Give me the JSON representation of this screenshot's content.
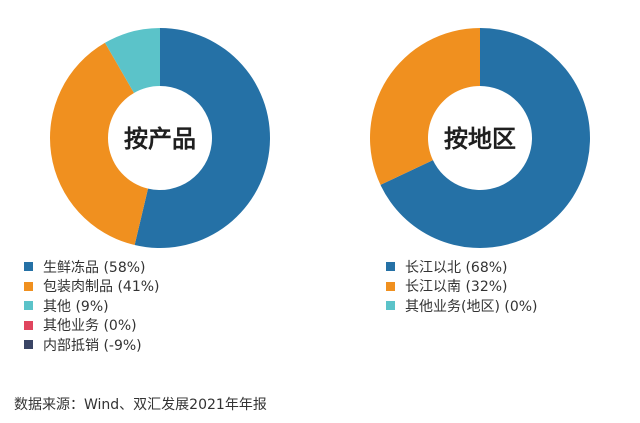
{
  "chart_data": [
    {
      "type": "pie",
      "title": "按产品",
      "series": [
        {
          "name": "生鲜冻品",
          "label": "生鲜冻品 (58%)",
          "value": 58,
          "color": "#2571a6"
        },
        {
          "name": "包装肉制品",
          "label": "包装肉制品 (41%)",
          "value": 41,
          "color": "#f0901f"
        },
        {
          "name": "其他",
          "label": "其他 (9%)",
          "value": 9,
          "color": "#5bc3c9"
        },
        {
          "name": "其他业务",
          "label": "其他业务 (0%)",
          "value": 0,
          "color": "#e0455e"
        },
        {
          "name": "内部抵销",
          "label": "内部抵销 (-9%)",
          "value": -9,
          "color": "#3a4565"
        }
      ],
      "legend": "bottom"
    },
    {
      "type": "pie",
      "title": "按地区",
      "series": [
        {
          "name": "长江以北",
          "label": "长江以北 (68%)",
          "value": 68,
          "color": "#2571a6"
        },
        {
          "name": "长江以南",
          "label": "长江以南 (32%)",
          "value": 32,
          "color": "#f0901f"
        },
        {
          "name": "其他业务(地区)",
          "label": "其他业务(地区) (0%)",
          "value": 0,
          "color": "#5bc3c9"
        }
      ],
      "legend": "bottom"
    }
  ],
  "source": "数据来源：Wind、双汇发展2021年年报"
}
